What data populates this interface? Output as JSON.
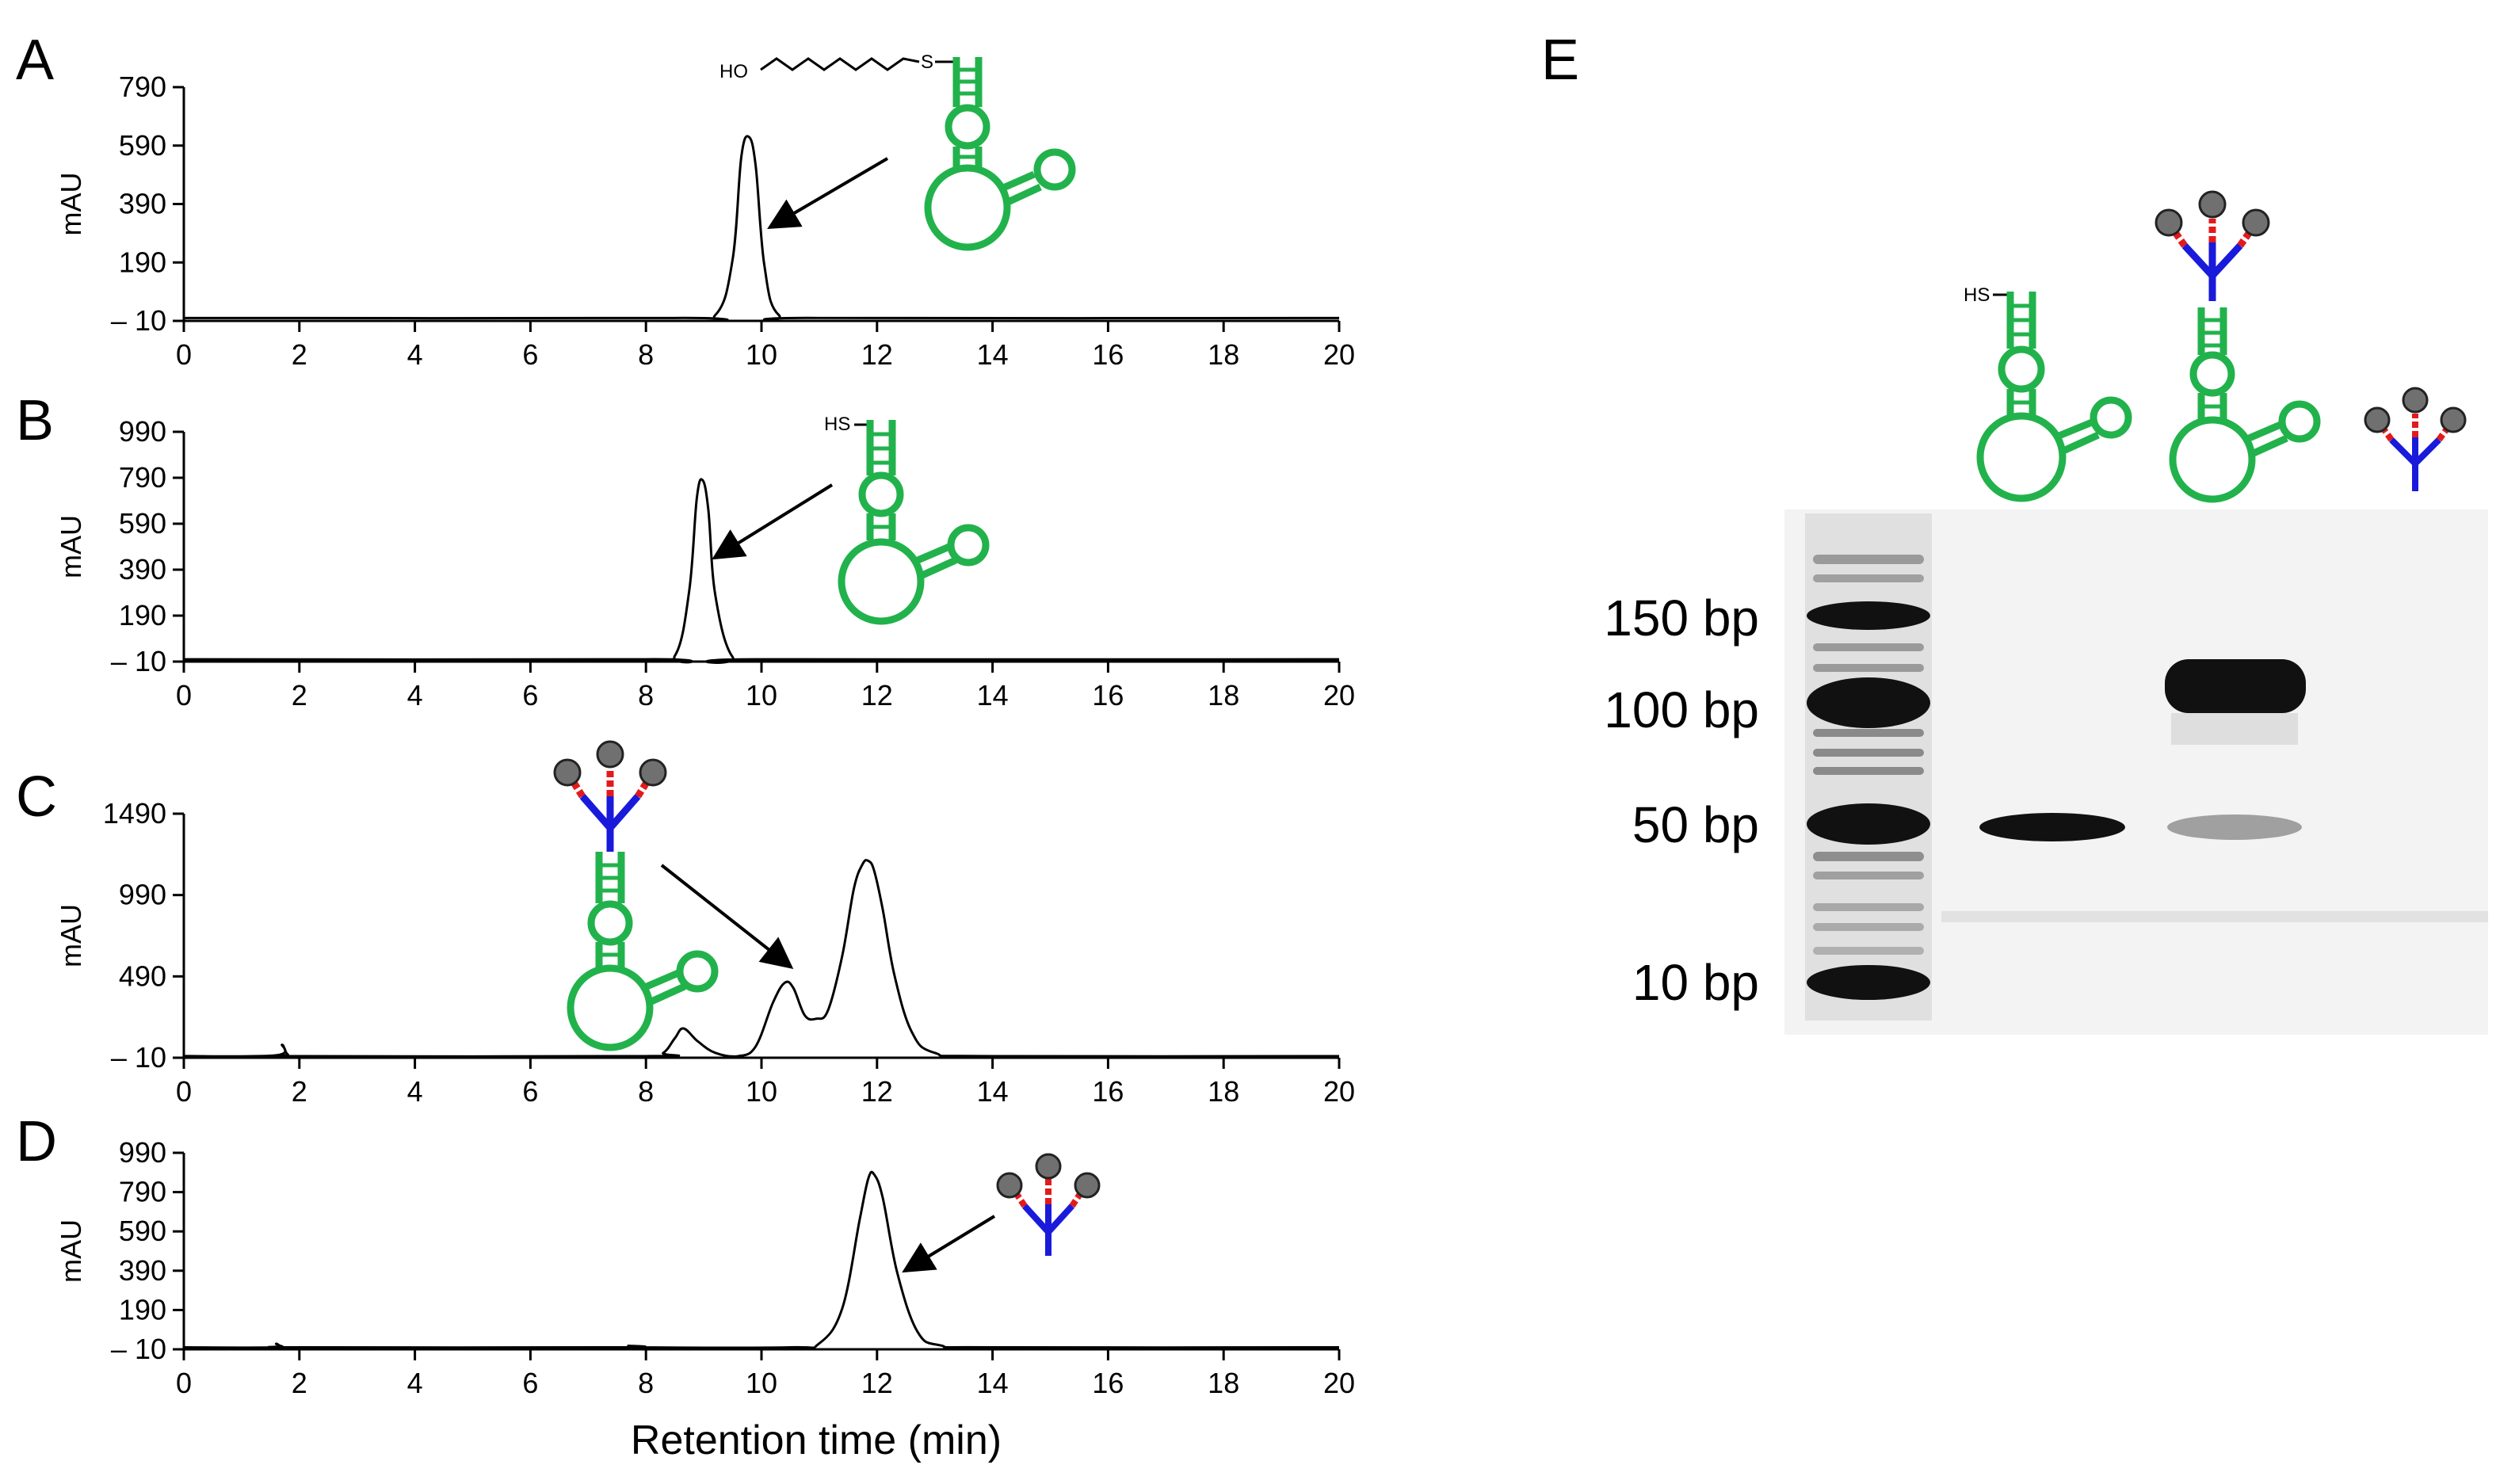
{
  "figure": {
    "xlabel": "Retention time (min)",
    "gel": {
      "panel_label": "E",
      "ladder_labels": [
        "150 bp",
        "100 bp",
        "50 bp",
        "10 bp"
      ],
      "hs_label": "HS"
    },
    "chem_labels": {
      "ho": "HO",
      "s": "S",
      "hs": "HS"
    }
  },
  "chart_data": [
    {
      "type": "line",
      "panel_label": "A",
      "ylabel": "mAU",
      "xlim": [
        0,
        20
      ],
      "ylim": [
        -10,
        790
      ],
      "yticks": [
        -10,
        190,
        390,
        590,
        790
      ],
      "ytick_labels": [
        "– 10",
        "190",
        "390",
        "590",
        "790"
      ],
      "xticks": [
        0,
        2,
        4,
        6,
        8,
        10,
        12,
        14,
        16,
        18,
        20
      ],
      "series": [
        {
          "x": [
            0,
            8.5,
            9.2,
            9.5,
            9.65,
            9.78,
            9.9,
            10.05,
            10.3,
            11,
            20
          ],
          "y": [
            0,
            0,
            10,
            200,
            550,
            620,
            520,
            180,
            10,
            0,
            0
          ]
        }
      ]
    },
    {
      "type": "line",
      "panel_label": "B",
      "ylabel": "mAU",
      "xlim": [
        0,
        20
      ],
      "ylim": [
        -10,
        990
      ],
      "yticks": [
        -10,
        190,
        390,
        590,
        790,
        990
      ],
      "ytick_labels": [
        "– 10",
        "190",
        "390",
        "590",
        "790",
        "990"
      ],
      "xticks": [
        0,
        2,
        4,
        6,
        8,
        10,
        12,
        14,
        16,
        18,
        20
      ],
      "series": [
        {
          "x": [
            0,
            8.0,
            8.5,
            8.75,
            8.88,
            8.98,
            9.08,
            9.2,
            9.5,
            10,
            20
          ],
          "y": [
            0,
            0,
            15,
            300,
            700,
            780,
            650,
            280,
            10,
            0,
            0
          ]
        }
      ]
    },
    {
      "type": "line",
      "panel_label": "C",
      "ylabel": "mAU",
      "xlim": [
        0,
        20
      ],
      "ylim": [
        -10,
        1490
      ],
      "yticks": [
        -10,
        490,
        990,
        1490
      ],
      "ytick_labels": [
        "– 10",
        "490",
        "990",
        "1490"
      ],
      "xticks": [
        0,
        2,
        4,
        6,
        8,
        10,
        12,
        14,
        16,
        18,
        20
      ],
      "series": [
        {
          "x": [
            0,
            1.6,
            1.7,
            1.8,
            2.0,
            8.0,
            8.3,
            8.5,
            8.65,
            8.9,
            9.2,
            9.6,
            9.9,
            10.2,
            10.4,
            10.55,
            10.75,
            10.95,
            11.15,
            11.4,
            11.6,
            11.75,
            11.85,
            11.95,
            12.1,
            12.3,
            12.6,
            13.0,
            14,
            20
          ],
          "y": [
            0,
            5,
            70,
            10,
            0,
            0,
            20,
            110,
            170,
            90,
            20,
            0,
            60,
            330,
            450,
            420,
            250,
            230,
            280,
            620,
            1030,
            1180,
            1200,
            1140,
            900,
            500,
            150,
            20,
            0,
            0
          ]
        }
      ]
    },
    {
      "type": "line",
      "panel_label": "D",
      "ylabel": "mAU",
      "xlim": [
        0,
        20
      ],
      "ylim": [
        -10,
        990
      ],
      "yticks": [
        -10,
        190,
        390,
        590,
        790,
        990
      ],
      "ytick_labels": [
        "– 10",
        "190",
        "390",
        "590",
        "790",
        "990"
      ],
      "xticks": [
        0,
        2,
        4,
        6,
        8,
        10,
        12,
        14,
        16,
        18,
        20
      ],
      "series": [
        {
          "x": [
            0,
            1.5,
            1.6,
            1.7,
            2.0,
            7.5,
            7.7,
            8.0,
            10.5,
            11.0,
            11.4,
            11.7,
            11.85,
            11.95,
            12.1,
            12.35,
            12.7,
            13.1,
            14,
            20
          ],
          "y": [
            0,
            0,
            18,
            5,
            0,
            0,
            8,
            0,
            0,
            20,
            200,
            650,
            860,
            880,
            760,
            380,
            80,
            10,
            0,
            0
          ]
        }
      ]
    }
  ]
}
